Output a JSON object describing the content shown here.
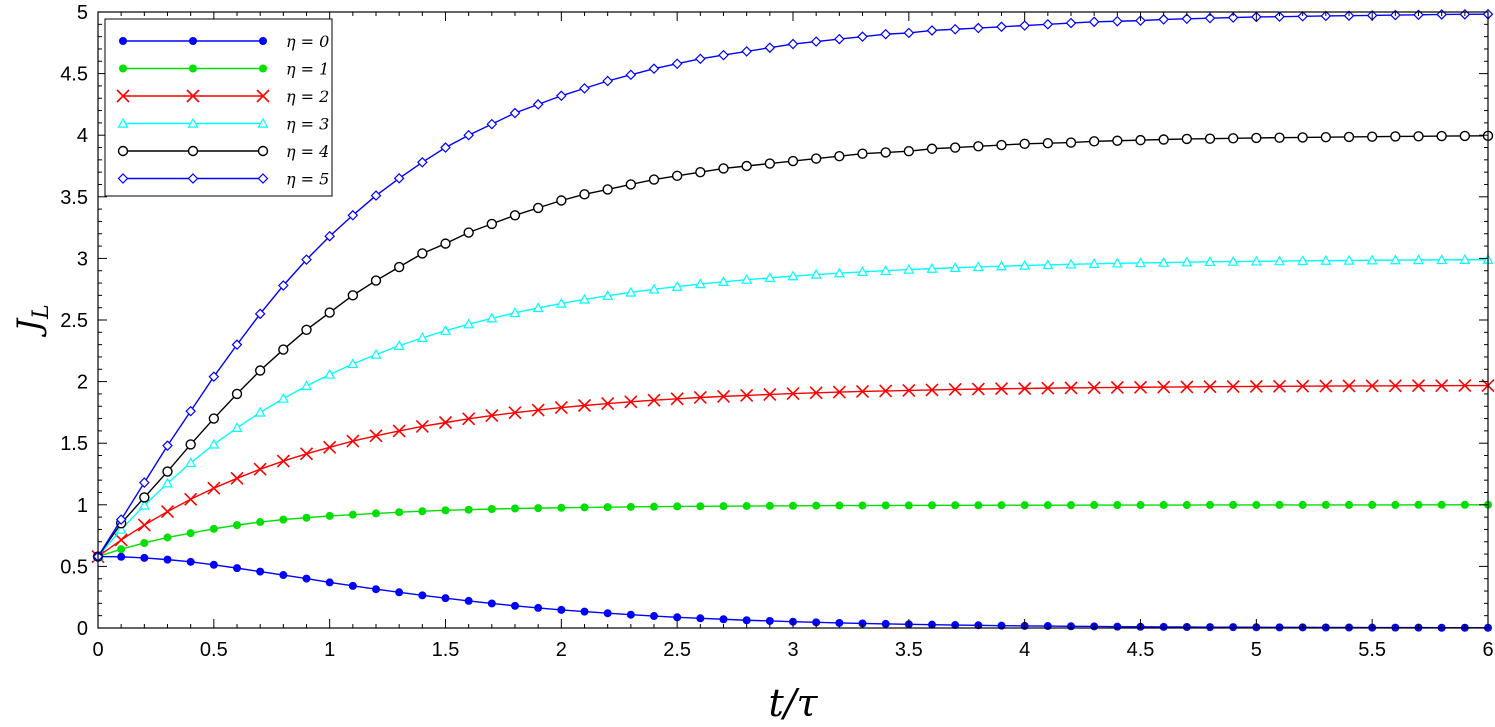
{
  "chart_data": {
    "type": "line",
    "title": "",
    "xlabel": "t/τ",
    "ylabel": "J_L",
    "xlim": [
      0,
      6
    ],
    "ylim": [
      0,
      5
    ],
    "xticks": [
      "0",
      "0.5",
      "1",
      "1.5",
      "2",
      "2.5",
      "3",
      "3.5",
      "4",
      "4.5",
      "5",
      "5.5",
      "6"
    ],
    "yticks": [
      "0",
      "0.5",
      "1",
      "1.5",
      "2",
      "2.5",
      "3",
      "3.5",
      "4",
      "4.5",
      "5"
    ],
    "grid": false,
    "legend_position": "top-left",
    "x": [
      0,
      0.1,
      0.2,
      0.3,
      0.4,
      0.5,
      0.6,
      0.7,
      0.8,
      0.9,
      1.0,
      1.1,
      1.2,
      1.3,
      1.4,
      1.5,
      1.6,
      1.7,
      1.8,
      1.9,
      2.0,
      2.1,
      2.2,
      2.3,
      2.4,
      2.5,
      2.6,
      2.7,
      2.8,
      2.9,
      3.0,
      3.1,
      3.2,
      3.3,
      3.4,
      3.5,
      3.6,
      3.7,
      3.8,
      3.9,
      4.0,
      4.1,
      4.2,
      4.3,
      4.4,
      4.5,
      4.6,
      4.7,
      4.8,
      4.9,
      5.0,
      5.1,
      5.2,
      5.3,
      5.4,
      5.5,
      5.6,
      5.7,
      5.8,
      5.9,
      6.0
    ],
    "series": [
      {
        "name": "η = 0",
        "color": "#0000ff",
        "marker": "dot",
        "values": [
          0.58,
          0.578,
          0.569,
          0.555,
          0.537,
          0.513,
          0.486,
          0.458,
          0.43,
          0.401,
          0.37,
          0.342,
          0.315,
          0.29,
          0.265,
          0.242,
          0.22,
          0.199,
          0.18,
          0.163,
          0.147,
          0.133,
          0.12,
          0.108,
          0.097,
          0.087,
          0.079,
          0.071,
          0.063,
          0.057,
          0.051,
          0.046,
          0.041,
          0.037,
          0.033,
          0.03,
          0.027,
          0.024,
          0.022,
          0.019,
          0.017,
          0.016,
          0.014,
          0.013,
          0.011,
          0.01,
          0.009,
          0.008,
          0.007,
          0.007,
          0.006,
          0.005,
          0.005,
          0.004,
          0.004,
          0.003,
          0.003,
          0.003,
          0.002,
          0.002,
          0.002
        ]
      },
      {
        "name": "η = 1",
        "color": "#00e000",
        "marker": "dot",
        "values": [
          0.58,
          0.64,
          0.69,
          0.735,
          0.77,
          0.805,
          0.835,
          0.86,
          0.88,
          0.895,
          0.91,
          0.92,
          0.93,
          0.94,
          0.948,
          0.955,
          0.96,
          0.966,
          0.97,
          0.973,
          0.976,
          0.979,
          0.981,
          0.983,
          0.985,
          0.987,
          0.988,
          0.989,
          0.99,
          0.991,
          0.992,
          0.993,
          0.994,
          0.994,
          0.995,
          0.995,
          0.996,
          0.996,
          0.996,
          0.997,
          0.997,
          0.997,
          0.997,
          0.998,
          0.998,
          0.998,
          0.998,
          0.998,
          0.999,
          0.999,
          0.999,
          0.999,
          0.999,
          0.999,
          0.999,
          0.999,
          0.999,
          1.0,
          1.0,
          1.0,
          1.0
        ]
      },
      {
        "name": "η = 2",
        "color": "#ff0000",
        "marker": "x",
        "values": [
          0.58,
          0.715,
          0.836,
          0.945,
          1.045,
          1.135,
          1.215,
          1.289,
          1.355,
          1.414,
          1.467,
          1.517,
          1.56,
          1.6,
          1.636,
          1.668,
          1.698,
          1.724,
          1.748,
          1.769,
          1.789,
          1.806,
          1.822,
          1.836,
          1.849,
          1.86,
          1.871,
          1.88,
          1.888,
          1.896,
          1.903,
          1.909,
          1.915,
          1.92,
          1.924,
          1.928,
          1.932,
          1.936,
          1.939,
          1.942,
          1.944,
          1.947,
          1.949,
          1.951,
          1.953,
          1.954,
          1.956,
          1.957,
          1.959,
          1.96,
          1.961,
          1.962,
          1.963,
          1.964,
          1.965,
          1.965,
          1.966,
          1.967,
          1.967,
          1.968,
          1.968
        ]
      },
      {
        "name": "η = 3",
        "color": "#00ffff",
        "marker": "triangle",
        "values": [
          0.58,
          0.8,
          0.995,
          1.175,
          1.34,
          1.49,
          1.625,
          1.75,
          1.862,
          1.965,
          2.058,
          2.143,
          2.22,
          2.291,
          2.355,
          2.413,
          2.466,
          2.514,
          2.558,
          2.598,
          2.634,
          2.667,
          2.697,
          2.724,
          2.749,
          2.771,
          2.792,
          2.81,
          2.827,
          2.842,
          2.856,
          2.869,
          2.88,
          2.891,
          2.9,
          2.909,
          2.917,
          2.924,
          2.931,
          2.937,
          2.942,
          2.947,
          2.952,
          2.956,
          2.96,
          2.963,
          2.966,
          2.969,
          2.972,
          2.974,
          2.976,
          2.978,
          2.98,
          2.982,
          2.983,
          2.985,
          2.986,
          2.987,
          2.988,
          2.989,
          2.99
        ]
      },
      {
        "name": "η = 4",
        "color": "#000000",
        "marker": "circle",
        "values": [
          0.58,
          0.85,
          1.06,
          1.27,
          1.49,
          1.7,
          1.9,
          2.09,
          2.26,
          2.42,
          2.56,
          2.7,
          2.82,
          2.93,
          3.04,
          3.12,
          3.21,
          3.28,
          3.35,
          3.41,
          3.47,
          3.52,
          3.56,
          3.6,
          3.64,
          3.67,
          3.7,
          3.73,
          3.75,
          3.77,
          3.79,
          3.81,
          3.83,
          3.85,
          3.86,
          3.87,
          3.89,
          3.9,
          3.91,
          3.92,
          3.93,
          3.935,
          3.94,
          3.95,
          3.955,
          3.96,
          3.965,
          3.97,
          3.972,
          3.975,
          3.978,
          3.98,
          3.982,
          3.984,
          3.986,
          3.988,
          3.99,
          3.991,
          3.993,
          3.994,
          3.995
        ]
      },
      {
        "name": "η = 5",
        "color": "#0000ff",
        "marker": "diamond",
        "values": [
          0.58,
          0.88,
          1.18,
          1.48,
          1.76,
          2.04,
          2.3,
          2.55,
          2.78,
          2.99,
          3.18,
          3.35,
          3.51,
          3.65,
          3.78,
          3.9,
          4.0,
          4.09,
          4.18,
          4.25,
          4.32,
          4.38,
          4.44,
          4.49,
          4.54,
          4.58,
          4.62,
          4.65,
          4.68,
          4.71,
          4.74,
          4.76,
          4.78,
          4.8,
          4.82,
          4.83,
          4.85,
          4.86,
          4.87,
          4.88,
          4.89,
          4.9,
          4.91,
          4.92,
          4.925,
          4.93,
          4.94,
          4.945,
          4.95,
          4.955,
          4.96,
          4.962,
          4.965,
          4.968,
          4.97,
          4.972,
          4.975,
          4.977,
          4.98,
          4.981,
          4.982
        ]
      }
    ]
  }
}
